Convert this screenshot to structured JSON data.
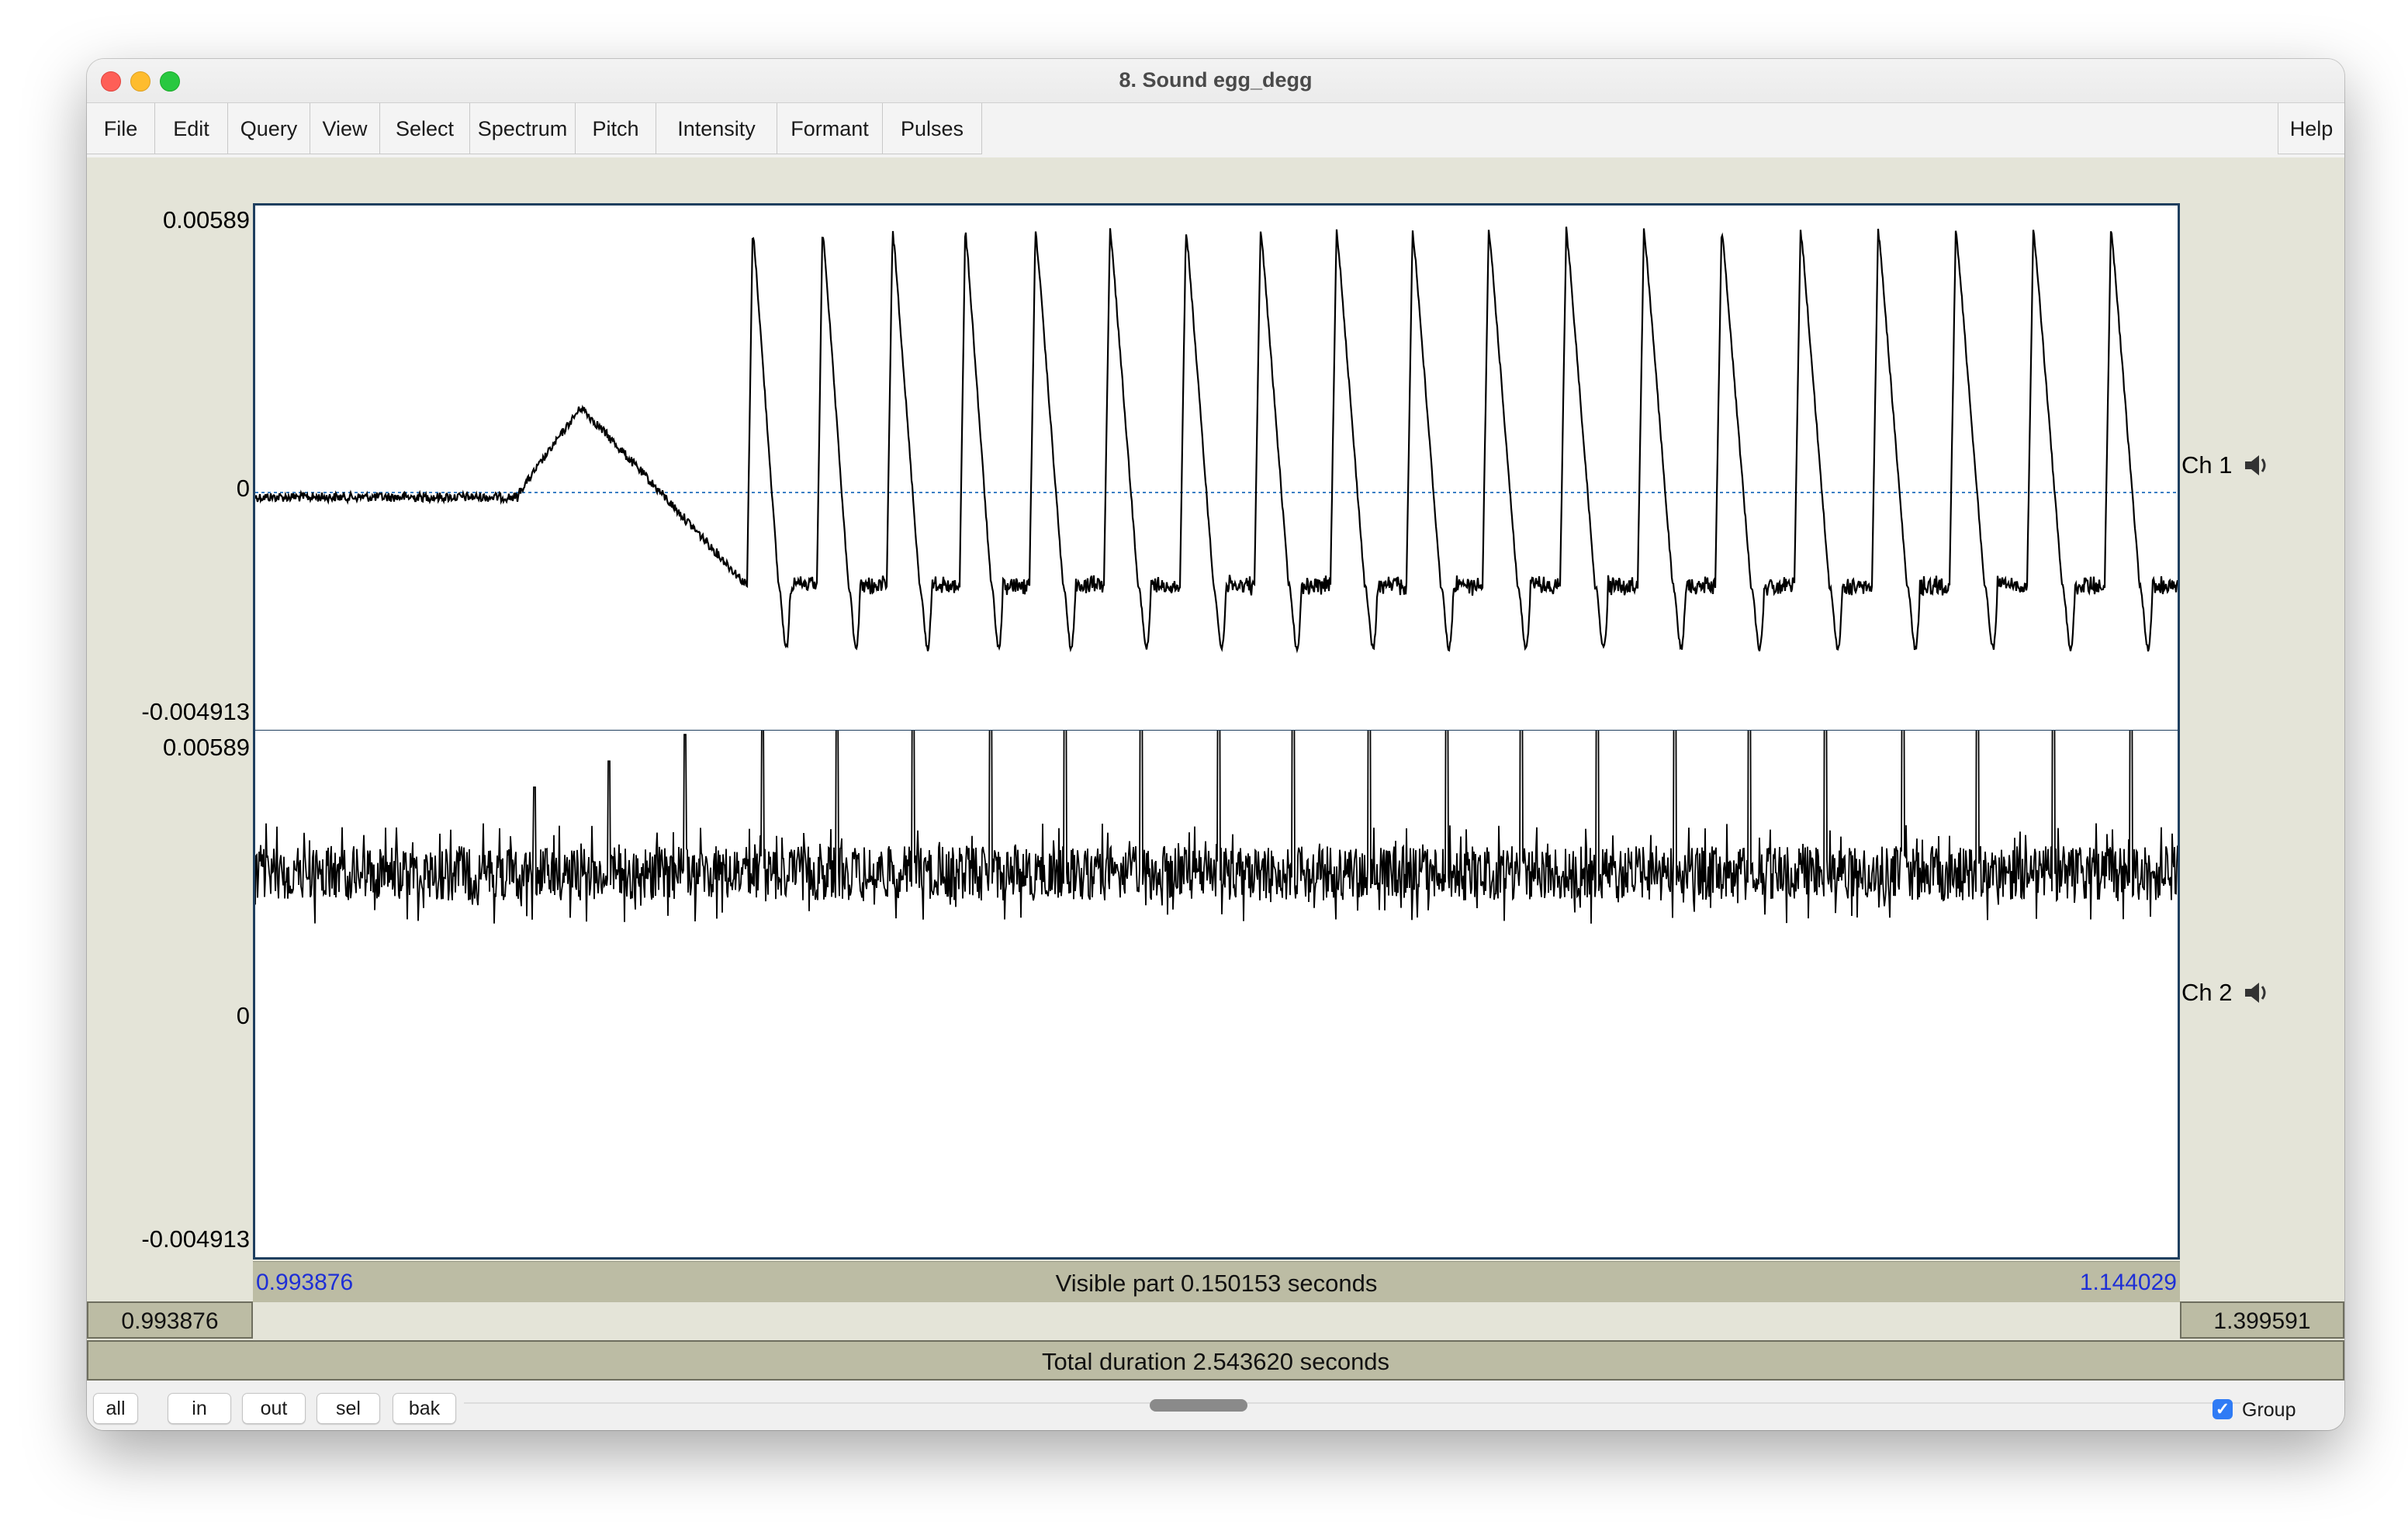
{
  "window": {
    "title": "8. Sound egg_degg"
  },
  "menubar": {
    "items": [
      "File",
      "Edit",
      "Query",
      "View",
      "Select",
      "Spectrum",
      "Pitch",
      "Intensity",
      "Formant",
      "Pulses"
    ],
    "help": "Help"
  },
  "channels": [
    {
      "label": "Ch 1",
      "y_max": "0.00589",
      "y_zero": "0",
      "y_min": "-0.004913",
      "icon": "speaker-icon"
    },
    {
      "label": "Ch 2",
      "y_max": "0.00589",
      "y_zero": "0",
      "y_min": "-0.004913",
      "icon": "speaker-icon"
    }
  ],
  "timebar": {
    "visible_start": "0.993876",
    "visible_end": "1.144029",
    "visible_part": "Visible part 0.150153 seconds",
    "window_start": "0.993876",
    "window_end": "1.399591"
  },
  "total_duration": "Total duration 2.543620 seconds",
  "nav_buttons": [
    "all",
    "in",
    "out",
    "sel",
    "bak"
  ],
  "group": {
    "label": "Group",
    "checked": true
  },
  "colors": {
    "waveform": "#000000",
    "zero_line": "#3a7fc4",
    "panel_border": "#1f3f5f",
    "time_label": "#1e2fd6",
    "window_bg": "#e4e4d8",
    "bar_bg": "#bcbca4"
  }
}
